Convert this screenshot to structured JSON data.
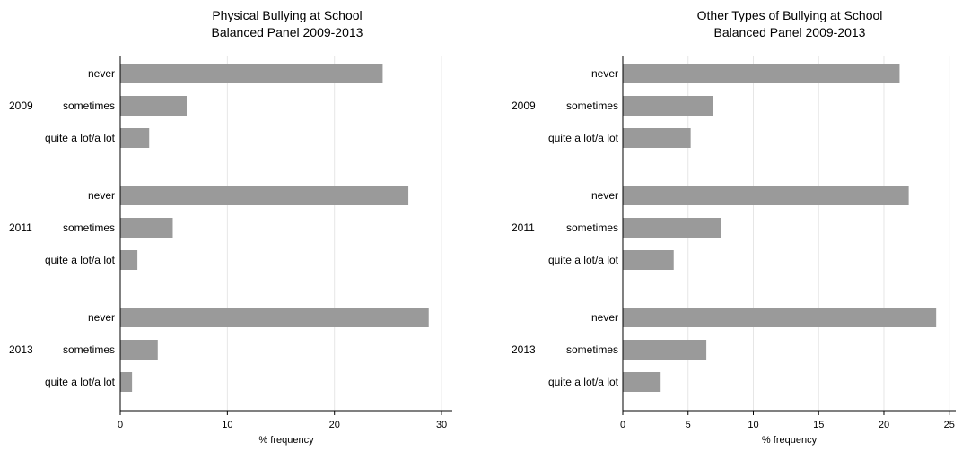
{
  "chart_data": [
    {
      "type": "bar",
      "orientation": "horizontal",
      "title": [
        "Physical Bullying at School",
        "Balanced Panel 2009-2013"
      ],
      "xlabel": "% frequency",
      "xlim": [
        0,
        31
      ],
      "xticks": [
        0,
        10,
        20,
        30
      ],
      "grid": true,
      "groups": [
        {
          "name": "2009",
          "categories": [
            "never",
            "sometimes",
            "quite a lot/a lot"
          ],
          "values": [
            24.5,
            6.2,
            2.7
          ]
        },
        {
          "name": "2011",
          "categories": [
            "never",
            "sometimes",
            "quite a lot/a lot"
          ],
          "values": [
            26.9,
            4.9,
            1.6
          ]
        },
        {
          "name": "2013",
          "categories": [
            "never",
            "sometimes",
            "quite a lot/a lot"
          ],
          "values": [
            28.8,
            3.5,
            1.1
          ]
        }
      ]
    },
    {
      "type": "bar",
      "orientation": "horizontal",
      "title": [
        "Other Types of Bullying at School",
        "Balanced Panel 2009-2013"
      ],
      "xlabel": "% frequency",
      "xlim": [
        0,
        25.5
      ],
      "xticks": [
        0,
        5,
        10,
        15,
        20,
        25
      ],
      "grid": true,
      "groups": [
        {
          "name": "2009",
          "categories": [
            "never",
            "sometimes",
            "quite a lot/a lot"
          ],
          "values": [
            21.2,
            6.9,
            5.2
          ]
        },
        {
          "name": "2011",
          "categories": [
            "never",
            "sometimes",
            "quite a lot/a lot"
          ],
          "values": [
            21.9,
            7.5,
            3.9
          ]
        },
        {
          "name": "2013",
          "categories": [
            "never",
            "sometimes",
            "quite a lot/a lot"
          ],
          "values": [
            24.0,
            6.4,
            2.9
          ]
        }
      ]
    }
  ]
}
